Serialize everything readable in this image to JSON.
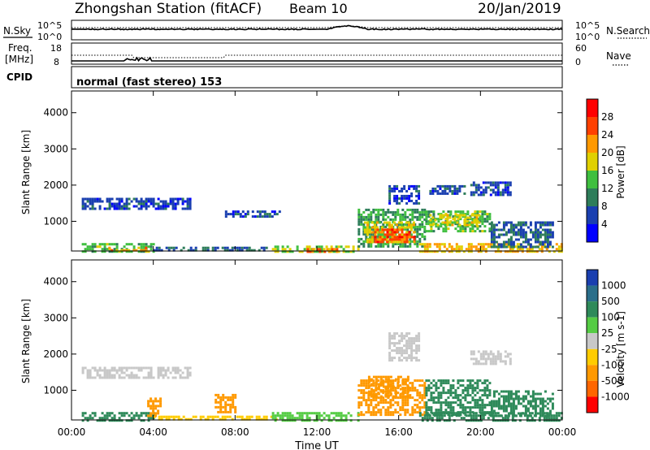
{
  "header": {
    "station": "Zhongshan Station (fitACF)",
    "beam": "Beam 10",
    "date": "20/Jan/2019"
  },
  "top_panel": {
    "nsky_label": "N.Sky",
    "nsearch_label": "N.Search",
    "left_ticks": [
      "10^5",
      "10^0"
    ],
    "right_ticks": [
      "10^5",
      "10^0"
    ]
  },
  "freq_panel": {
    "label_line1": "Freq.",
    "label_line2": "[MHz]",
    "left_ticks": [
      "18",
      "8"
    ],
    "right_ticks": [
      "60",
      "0"
    ],
    "nave_label": "Nave"
  },
  "cpid": {
    "label": "CPID",
    "mode_text": "normal (fast stereo) 153"
  },
  "axes": {
    "ylabel": "Slant Range [km]",
    "xlabel": "Time UT",
    "y_ticks": [
      "4000",
      "3000",
      "2000",
      "1000"
    ],
    "x_ticks": [
      "00:00",
      "04:00",
      "08:00",
      "12:00",
      "16:00",
      "20:00",
      "00:00"
    ]
  },
  "colorbars": {
    "power": {
      "label": "Power [dB]",
      "ticks": [
        "28",
        "24",
        "20",
        "16",
        "12",
        "8",
        "4"
      ],
      "colors": [
        "#0000ff",
        "#1a3fb0",
        "#2e7d5a",
        "#3fbf3f",
        "#e0d000",
        "#ff9900",
        "#ff4000",
        "#ff0000"
      ]
    },
    "velocity": {
      "label": "Velocity [m s-1]",
      "ticks": [
        "1000",
        "500",
        "100",
        "25",
        "-25",
        "-100",
        "-500",
        "-1000"
      ],
      "colors": [
        "#1a3fb0",
        "#2a6e8a",
        "#2e8a5a",
        "#55cc44",
        "#c8c8c8",
        "#ffcc00",
        "#ff9900",
        "#ff6600",
        "#ff0000"
      ]
    }
  },
  "chart_data": [
    {
      "type": "heatmap",
      "name": "Power",
      "xlabel": "Time UT",
      "ylabel": "Slant Range [km]",
      "xlim": [
        0,
        24
      ],
      "ylim": [
        180,
        4600
      ],
      "colorbar_label": "Power [dB]",
      "cells": [
        {
          "t": [
            0.5,
            5.8
          ],
          "r": [
            1350,
            1650
          ],
          "v": 6
        },
        {
          "t": [
            0.5,
            4.0
          ],
          "r": [
            180,
            400
          ],
          "v": 14
        },
        {
          "t": [
            1.8,
            3.6
          ],
          "r": [
            180,
            300
          ],
          "v": 22
        },
        {
          "t": [
            4.0,
            9.5
          ],
          "r": [
            180,
            300
          ],
          "v": 8
        },
        {
          "t": [
            7.5,
            10.2
          ],
          "r": [
            1100,
            1300
          ],
          "v": 6
        },
        {
          "t": [
            9.8,
            14.0
          ],
          "r": [
            180,
            330
          ],
          "v": 16
        },
        {
          "t": [
            11.5,
            13.0
          ],
          "r": [
            180,
            260
          ],
          "v": 24
        },
        {
          "t": [
            14.0,
            17.3
          ],
          "r": [
            300,
            1350
          ],
          "v": 12
        },
        {
          "t": [
            14.3,
            16.8
          ],
          "r": [
            400,
            1000
          ],
          "v": 18
        },
        {
          "t": [
            14.8,
            16.8
          ],
          "r": [
            450,
            800
          ],
          "v": 26
        },
        {
          "t": [
            15.5,
            17.0
          ],
          "r": [
            1500,
            2000
          ],
          "v": 6
        },
        {
          "t": [
            17.3,
            20.5
          ],
          "r": [
            700,
            1300
          ],
          "v": 14
        },
        {
          "t": [
            17.5,
            20.0
          ],
          "r": [
            900,
            1200
          ],
          "v": 18
        },
        {
          "t": [
            17.0,
            24.0
          ],
          "r": [
            180,
            400
          ],
          "v": 20
        },
        {
          "t": [
            17.5,
            19.2
          ],
          "r": [
            1750,
            2000
          ],
          "v": 6
        },
        {
          "t": [
            19.5,
            21.5
          ],
          "r": [
            1700,
            2100
          ],
          "v": 6
        },
        {
          "t": [
            20.5,
            23.5
          ],
          "r": [
            300,
            1000
          ],
          "v": 8
        }
      ]
    },
    {
      "type": "heatmap",
      "name": "Velocity",
      "xlabel": "Time UT",
      "ylabel": "Slant Range [km]",
      "xlim": [
        0,
        24
      ],
      "ylim": [
        180,
        4600
      ],
      "colorbar_label": "Velocity [m s-1]",
      "cells": [
        {
          "t": [
            0.5,
            5.8
          ],
          "r": [
            1350,
            1650
          ],
          "v": 0
        },
        {
          "t": [
            0.5,
            4.0
          ],
          "r": [
            180,
            400
          ],
          "v": 150
        },
        {
          "t": [
            4.0,
            10.0
          ],
          "r": [
            180,
            300
          ],
          "v": -80
        },
        {
          "t": [
            3.7,
            4.4
          ],
          "r": [
            300,
            800
          ],
          "v": -150
        },
        {
          "t": [
            7.0,
            8.0
          ],
          "r": [
            400,
            900
          ],
          "v": -150
        },
        {
          "t": [
            9.8,
            14.0
          ],
          "r": [
            180,
            400
          ],
          "v": 50
        },
        {
          "t": [
            14.0,
            17.3
          ],
          "r": [
            300,
            1300
          ],
          "v": -150
        },
        {
          "t": [
            14.5,
            16.5
          ],
          "r": [
            800,
            1400
          ],
          "v": -300
        },
        {
          "t": [
            17.3,
            20.5
          ],
          "r": [
            300,
            1300
          ],
          "v": 150
        },
        {
          "t": [
            17.0,
            24.0
          ],
          "r": [
            180,
            400
          ],
          "v": 200
        },
        {
          "t": [
            19.5,
            21.5
          ],
          "r": [
            1700,
            2100
          ],
          "v": 0
        },
        {
          "t": [
            20.5,
            23.5
          ],
          "r": [
            300,
            1000
          ],
          "v": 400
        },
        {
          "t": [
            15.5,
            17.0
          ],
          "r": [
            1800,
            2600
          ],
          "v": 0
        }
      ]
    }
  ]
}
